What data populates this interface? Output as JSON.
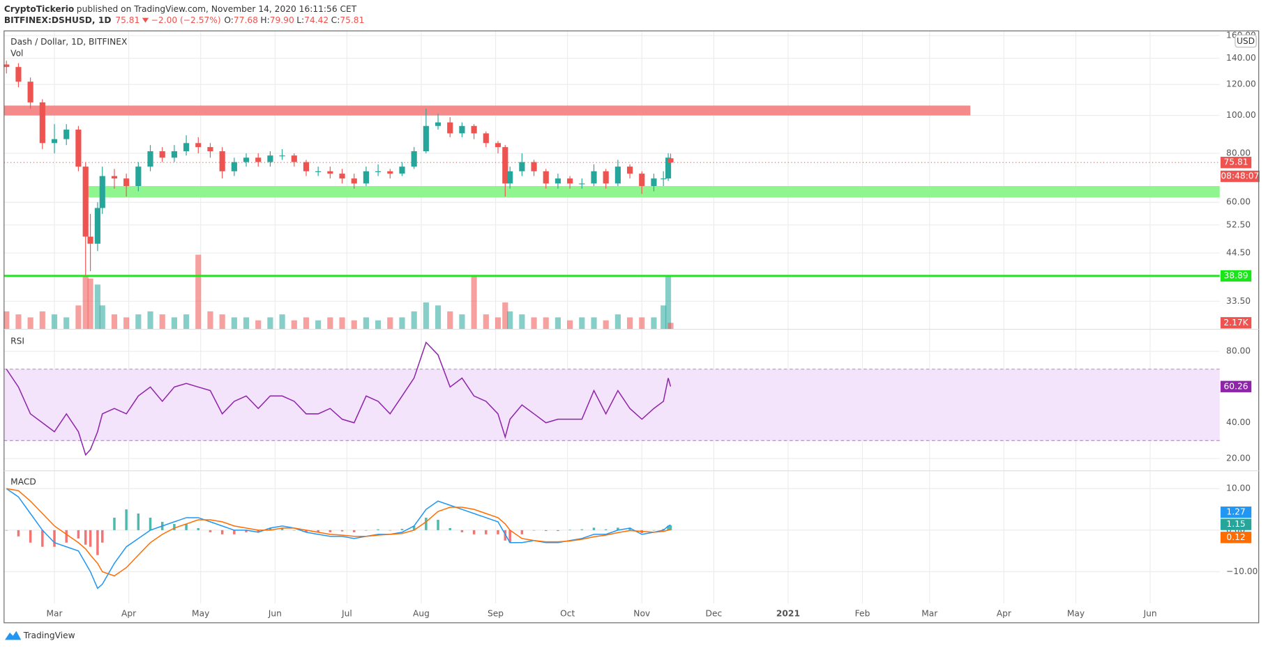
{
  "header": {
    "author": "CryptoTickerio",
    "published": "published on TradingView.com, November 14, 2020 16:11:56 CET",
    "symbol": "BITFINEX:DSHUSD, 1D",
    "last": "75.81",
    "change": "−2.00 (−2.57%)",
    "ohlc": [
      {
        "label": "O:",
        "value": "77.68"
      },
      {
        "label": "H:",
        "value": "79.90"
      },
      {
        "label": "L:",
        "value": "74.42"
      },
      {
        "label": "C:",
        "value": "75.81"
      }
    ]
  },
  "footer": {
    "brand": "TradingView"
  },
  "chart_data": [
    {
      "type": "candlestick",
      "title": "Dash / Dollar, 1D, BITFINEX",
      "currency": "USD",
      "countdown": "08:48:07",
      "log_scale": true,
      "grid": true,
      "up_color": "#26a69a",
      "down_color": "#ef5350",
      "x": [
        40,
        45,
        50,
        55,
        60,
        65,
        70,
        73,
        75,
        78,
        80,
        85,
        90,
        95,
        100,
        105,
        110,
        115,
        120,
        125,
        130,
        135,
        140,
        145,
        150,
        155,
        160,
        165,
        170,
        175,
        180,
        185,
        190,
        195,
        200,
        205,
        210,
        215,
        220,
        225,
        230,
        235,
        240,
        245,
        248,
        250,
        255,
        260,
        265,
        270,
        275,
        280,
        285,
        290,
        295,
        300,
        305,
        310,
        314,
        316,
        317
      ],
      "open": [
        135,
        133,
        122,
        108,
        85,
        87,
        92,
        74,
        49,
        47,
        58,
        70,
        69,
        66,
        74,
        81,
        78,
        81,
        85,
        83,
        81,
        72,
        76,
        78,
        76,
        79,
        79,
        76,
        72,
        72,
        71,
        69,
        67,
        72,
        72,
        71,
        74,
        81,
        94,
        96,
        90,
        94,
        90,
        85,
        83,
        67,
        72,
        76,
        72,
        67,
        69,
        67,
        67,
        72,
        67,
        74,
        71,
        66,
        69,
        69,
        77.68
      ],
      "high": [
        138,
        136,
        125,
        110,
        95,
        95,
        94,
        76,
        56,
        60,
        74,
        73,
        71,
        76,
        84,
        83,
        84,
        89,
        88,
        85,
        83,
        78,
        80,
        80,
        81,
        82,
        80,
        77,
        74,
        74,
        73,
        71,
        74,
        75,
        73,
        76,
        83,
        104,
        101,
        99,
        96,
        95,
        91,
        86,
        84,
        74,
        80,
        77,
        73,
        71,
        70,
        69,
        75,
        73,
        77,
        75,
        72,
        71,
        72,
        80,
        79.9
      ],
      "low": [
        128,
        118,
        104,
        82,
        80,
        84,
        72,
        39,
        40,
        45,
        56,
        65,
        62,
        64,
        72,
        76,
        76,
        79,
        80,
        78,
        69,
        70,
        74,
        74,
        74,
        77,
        74,
        70,
        70,
        69,
        67,
        65,
        66,
        70,
        69,
        70,
        73,
        80,
        92,
        88,
        88,
        87,
        83,
        80,
        62,
        65,
        70,
        70,
        65,
        65,
        65,
        65,
        66,
        65,
        66,
        69,
        63,
        64,
        66,
        68,
        74.42
      ],
      "close": [
        133,
        122,
        108,
        85,
        87,
        92,
        74,
        49,
        47,
        58,
        70,
        69,
        66,
        74,
        81,
        78,
        81,
        85,
        83,
        81,
        72,
        76,
        78,
        76,
        79,
        79,
        76,
        72,
        72,
        71,
        69,
        67,
        72,
        72,
        71,
        74,
        81,
        94,
        96,
        90,
        94,
        90,
        85,
        83,
        67,
        72,
        76,
        72,
        67,
        69,
        67,
        67,
        72,
        67,
        74,
        71,
        66,
        69,
        69,
        78,
        75.81
      ],
      "volume": {
        "name": "Vol",
        "values": [
          6,
          5,
          4,
          6,
          5,
          4,
          8,
          18,
          17,
          15,
          8,
          5,
          4,
          5,
          6,
          5,
          4,
          5,
          25,
          6,
          5,
          4,
          4,
          3,
          4,
          5,
          3,
          4,
          3,
          4,
          4,
          3,
          4,
          3,
          4,
          4,
          6,
          9,
          8,
          6,
          5,
          18,
          5,
          4,
          9,
          6,
          5,
          4,
          4,
          4,
          3,
          4,
          4,
          3,
          5,
          4,
          4,
          4,
          8,
          18,
          2.17
        ],
        "last_label": "2.17K",
        "ylim": [
          0,
          100
        ]
      },
      "zones": [
        {
          "from": 100,
          "to": 106,
          "x": [
            39,
            442
          ],
          "color": "#f48a8a"
        },
        {
          "from": 61.7,
          "to": 66,
          "x": [
            73,
            546
          ],
          "color": "#8ff58f"
        }
      ],
      "hline": {
        "value": 38.89,
        "color": "#19e619"
      },
      "xlim": [
        39,
        546
      ],
      "xticks": [
        {
          "value": 60,
          "label": "Mar"
        },
        {
          "value": 91,
          "label": "Apr"
        },
        {
          "value": 121,
          "label": "May"
        },
        {
          "value": 152,
          "label": "Jun"
        },
        {
          "value": 182,
          "label": "Jul"
        },
        {
          "value": 213,
          "label": "Aug"
        },
        {
          "value": 244,
          "label": "Sep"
        },
        {
          "value": 274,
          "label": "Oct"
        },
        {
          "value": 305,
          "label": "Nov"
        },
        {
          "value": 335,
          "label": "Dec"
        },
        {
          "value": 366,
          "label": "2021"
        },
        {
          "value": 397,
          "label": "Feb"
        },
        {
          "value": 425,
          "label": "Mar"
        },
        {
          "value": 456,
          "label": "Apr"
        },
        {
          "value": 486,
          "label": "May"
        },
        {
          "value": 517,
          "label": "Jun"
        }
      ],
      "ylim": [
        28.4,
        164.5
      ],
      "yticks": [
        {
          "value": 160,
          "label": "160.00"
        },
        {
          "value": 140,
          "label": "140.00"
        },
        {
          "value": 120,
          "label": "120.00"
        },
        {
          "value": 100,
          "label": "100.00"
        },
        {
          "value": 80,
          "label": "80.00"
        },
        {
          "value": 60,
          "label": "60.00"
        },
        {
          "value": 52.5,
          "label": "52.50"
        },
        {
          "value": 44.5,
          "label": "44.50"
        },
        {
          "value": 33.5,
          "label": "33.50"
        }
      ]
    },
    {
      "type": "line",
      "title": "RSI",
      "color": "#8e24aa",
      "band": [
        30,
        70
      ],
      "band_color": "#f3e3fb",
      "values": [
        70,
        60,
        45,
        40,
        35,
        45,
        35,
        22,
        25,
        35,
        45,
        48,
        45,
        55,
        60,
        52,
        60,
        62,
        60,
        58,
        45,
        52,
        55,
        48,
        55,
        55,
        52,
        45,
        45,
        48,
        42,
        40,
        55,
        52,
        45,
        55,
        65,
        85,
        78,
        60,
        65,
        55,
        52,
        45,
        32,
        42,
        50,
        45,
        40,
        42,
        42,
        42,
        58,
        45,
        58,
        48,
        42,
        48,
        52,
        65,
        60.26
      ],
      "ylim": [
        13.6,
        91.4
      ],
      "yticks": [
        {
          "value": 20,
          "label": "20.00"
        },
        {
          "value": 40,
          "label": "40.00"
        },
        {
          "value": 60,
          "label": "60.00"
        },
        {
          "value": 80,
          "label": "80.00"
        }
      ]
    },
    {
      "type": "macd",
      "title": "MACD",
      "series": [
        {
          "color": "#2196f3",
          "values": [
            10,
            8,
            4,
            0,
            -3,
            -4,
            -5,
            -8,
            -10,
            -14,
            -13,
            -8,
            -4,
            -2,
            0,
            1,
            2,
            3,
            3,
            2,
            1,
            0,
            0,
            -0.5,
            0.5,
            1,
            0.5,
            -0.5,
            -1,
            -1.5,
            -1.5,
            -2,
            -1.5,
            -1,
            -1,
            -0.5,
            1,
            5,
            7,
            6,
            5,
            4,
            3,
            2,
            -1,
            -3,
            -3,
            -2.5,
            -3,
            -3,
            -2.5,
            -2,
            -1,
            -1,
            0,
            0.5,
            -1,
            -0.5,
            0,
            1,
            1.27
          ]
        },
        {
          "color": "#ff6d00",
          "values": [
            10,
            9.5,
            7,
            4,
            1,
            -1,
            -3,
            -4.5,
            -6,
            -8,
            -10,
            -11,
            -9,
            -6,
            -3,
            -1,
            0.5,
            1.5,
            2.5,
            2.5,
            2,
            1,
            0.5,
            0,
            0,
            0.5,
            0.5,
            0,
            -0.5,
            -1,
            -1.2,
            -1.5,
            -1.5,
            -1.2,
            -1,
            -0.8,
            0,
            2,
            4.5,
            5.5,
            5.5,
            5,
            4,
            3,
            1.5,
            0,
            -2,
            -2.5,
            -2.8,
            -2.8,
            -2.6,
            -2.2,
            -1.6,
            -1.2,
            -0.6,
            -0.1,
            -0.3,
            -0.5,
            -0.3,
            0,
            0.12
          ]
        }
      ],
      "histogram": {
        "up_color": "#26a69a",
        "down_color": "#ef5350",
        "values": [
          0,
          -1.5,
          -3,
          -4,
          -4,
          -3,
          -2,
          -3.5,
          -4,
          -6,
          -3,
          3,
          5,
          4,
          3,
          2,
          1.5,
          1.5,
          0.5,
          -0.5,
          -1,
          -1,
          -0.5,
          -0.5,
          0.5,
          0.5,
          0,
          -0.5,
          -0.5,
          -0.5,
          -0.3,
          -0.5,
          0,
          0.2,
          0,
          0.3,
          1,
          3,
          2.5,
          0.5,
          -0.5,
          -1,
          -1,
          -1,
          -2.5,
          -3,
          -1,
          0,
          -0.2,
          -0.2,
          0.1,
          0.2,
          0.6,
          0.2,
          0.6,
          0.6,
          -0.7,
          0,
          0.3,
          1,
          1.15
        ]
      },
      "ylim": [
        -17.6,
        14.1
      ],
      "yticks": [
        {
          "value": -10,
          "label": "−10.00"
        },
        {
          "value": 0,
          "label": "0.00"
        },
        {
          "value": 10,
          "label": "10.00"
        }
      ]
    }
  ]
}
